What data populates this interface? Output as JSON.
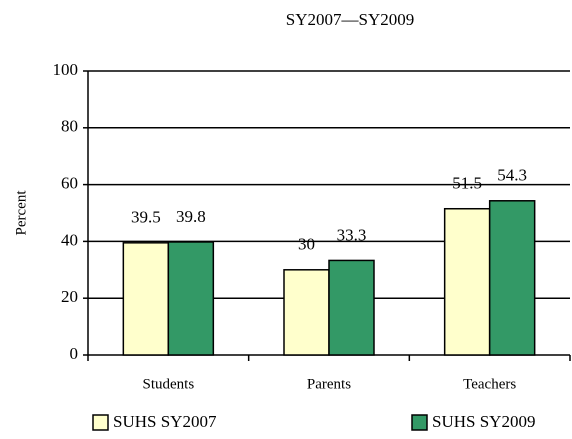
{
  "chart_data": {
    "type": "bar",
    "title": "SY2007—SY2009",
    "y_label": "Percent",
    "categories": [
      "Students",
      "Parents",
      "Teachers"
    ],
    "series": [
      {
        "name": "SUHS SY2007",
        "color": "#ffffcc",
        "values": [
          39.5,
          30,
          51.5
        ]
      },
      {
        "name": "SUHS SY2009",
        "color": "#339966",
        "values": [
          39.8,
          33.3,
          54.3
        ]
      }
    ],
    "ylim": [
      0,
      100
    ],
    "yticks": [
      0,
      20,
      40,
      60,
      80,
      100
    ],
    "grid": true,
    "legend": "bottom"
  }
}
